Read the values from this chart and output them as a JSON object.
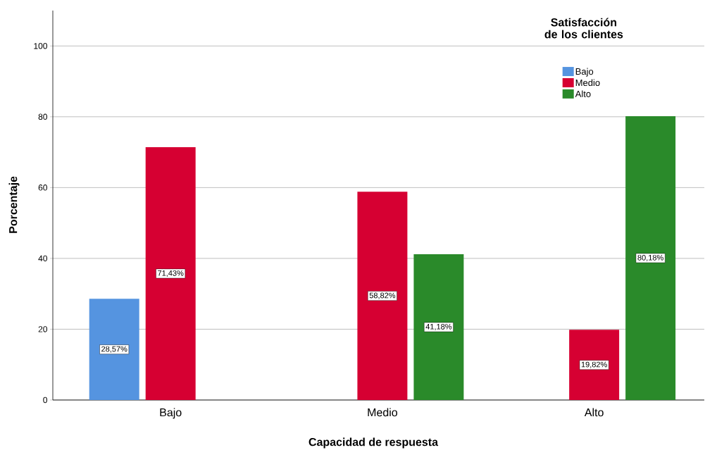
{
  "chart_data": {
    "type": "bar",
    "xlabel": "Capacidad de respuesta",
    "ylabel": "Porcentaje",
    "legend_title": "Satisfacción de los clientes",
    "categories": [
      "Bajo",
      "Medio",
      "Alto"
    ],
    "series": [
      {
        "name": "Bajo",
        "color": "#5594e0",
        "values": [
          28.57,
          null,
          null
        ],
        "value_labels": [
          "28,57%",
          null,
          null
        ]
      },
      {
        "name": "Medio",
        "color": "#d60032",
        "values": [
          71.43,
          58.82,
          19.82
        ],
        "value_labels": [
          "71,43%",
          "58,82%",
          "19,82%"
        ]
      },
      {
        "name": "Alto",
        "color": "#2a8a2a",
        "values": [
          null,
          41.18,
          80.18
        ],
        "value_labels": [
          null,
          "41,18%",
          "80,18%"
        ]
      }
    ],
    "ylim": [
      0,
      110
    ],
    "yticks": [
      0,
      20,
      40,
      60,
      80,
      100
    ],
    "grid": "y",
    "legend": "top right"
  }
}
